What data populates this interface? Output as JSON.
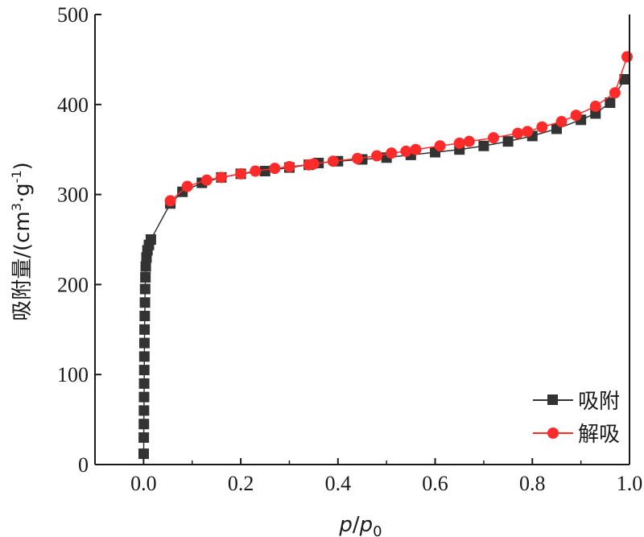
{
  "chart_data": {
    "type": "line",
    "title": "",
    "xlabel": {
      "italic1": "p",
      "slash": "/",
      "italic2": "p",
      "sub": "0"
    },
    "ylabel": {
      "main": "吸附量/(cm",
      "sup1": "3",
      "mid": "·g",
      "sup2": "-1",
      "end": ")"
    },
    "xlim": [
      -0.1,
      1.0
    ],
    "ylim": [
      0,
      500
    ],
    "xticks": [
      "0.0",
      "0.2",
      "0.4",
      "0.6",
      "0.8",
      "1.0"
    ],
    "yticks": [
      "0",
      "100",
      "200",
      "300",
      "400",
      "500"
    ],
    "grid": false,
    "legend_position": "bottom-right",
    "series": [
      {
        "name": "吸附",
        "color": "#333333",
        "marker": "square",
        "points": [
          [
            0.0002,
            12
          ],
          [
            0.0004,
            30
          ],
          [
            0.0006,
            45
          ],
          [
            0.0008,
            60
          ],
          [
            0.001,
            75
          ],
          [
            0.0012,
            90
          ],
          [
            0.0014,
            105
          ],
          [
            0.0016,
            120
          ],
          [
            0.0018,
            135
          ],
          [
            0.002,
            150
          ],
          [
            0.0024,
            165
          ],
          [
            0.0028,
            180
          ],
          [
            0.0032,
            195
          ],
          [
            0.0038,
            208
          ],
          [
            0.0045,
            220
          ],
          [
            0.006,
            230
          ],
          [
            0.008,
            238
          ],
          [
            0.011,
            244
          ],
          [
            0.015,
            250
          ],
          [
            0.055,
            290
          ],
          [
            0.08,
            303
          ],
          [
            0.12,
            313
          ],
          [
            0.16,
            319
          ],
          [
            0.2,
            323
          ],
          [
            0.25,
            326
          ],
          [
            0.3,
            330
          ],
          [
            0.34,
            333
          ],
          [
            0.36,
            335
          ],
          [
            0.4,
            337
          ],
          [
            0.45,
            339
          ],
          [
            0.5,
            341
          ],
          [
            0.55,
            344
          ],
          [
            0.6,
            347
          ],
          [
            0.65,
            350
          ],
          [
            0.7,
            354
          ],
          [
            0.75,
            359
          ],
          [
            0.8,
            365
          ],
          [
            0.85,
            373
          ],
          [
            0.9,
            383
          ],
          [
            0.93,
            390
          ],
          [
            0.96,
            402
          ],
          [
            0.99,
            428
          ]
        ]
      },
      {
        "name": "解吸",
        "color": "#ff2a2a",
        "marker": "circle",
        "points": [
          [
            0.995,
            453
          ],
          [
            0.97,
            413
          ],
          [
            0.93,
            398
          ],
          [
            0.89,
            388
          ],
          [
            0.86,
            381
          ],
          [
            0.82,
            375
          ],
          [
            0.79,
            370
          ],
          [
            0.77,
            368
          ],
          [
            0.72,
            363
          ],
          [
            0.67,
            359
          ],
          [
            0.65,
            357
          ],
          [
            0.61,
            354
          ],
          [
            0.56,
            350
          ],
          [
            0.54,
            348
          ],
          [
            0.51,
            346
          ],
          [
            0.48,
            343
          ],
          [
            0.44,
            340
          ],
          [
            0.39,
            337
          ],
          [
            0.35,
            334
          ],
          [
            0.34,
            333
          ],
          [
            0.3,
            331
          ],
          [
            0.27,
            329
          ],
          [
            0.23,
            326
          ],
          [
            0.2,
            323
          ],
          [
            0.16,
            319
          ],
          [
            0.13,
            316
          ],
          [
            0.09,
            309
          ],
          [
            0.055,
            293
          ]
        ]
      }
    ]
  }
}
